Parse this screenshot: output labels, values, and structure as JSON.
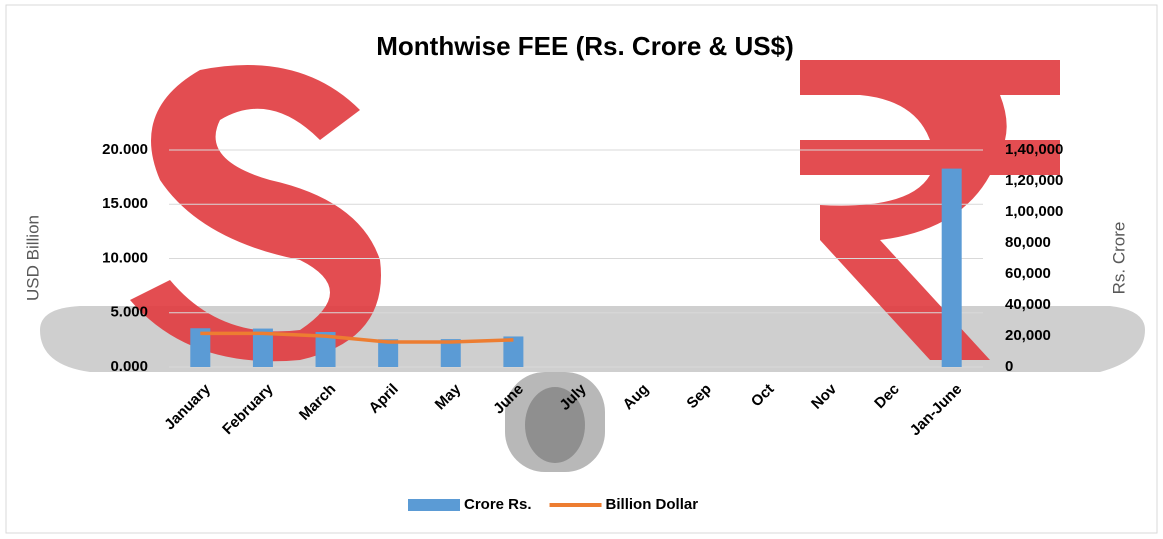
{
  "chart_data": {
    "type": "bar-line",
    "title": "Monthwise FEE (Rs. Crore & US$)",
    "categories": [
      "January",
      "February",
      "March",
      "April",
      "May",
      "June",
      "July",
      "Aug",
      "Sep",
      "Oct",
      "Nov",
      "Dec",
      "Jan-June"
    ],
    "series": [
      {
        "name": "Crore Rs.",
        "type": "bar",
        "axis": "y2",
        "color": "#5b9bd5",
        "values": [
          25000,
          24800,
          22600,
          17900,
          18000,
          19700,
          null,
          null,
          null,
          null,
          null,
          null,
          128000
        ]
      },
      {
        "name": "Billion Dollar",
        "type": "line",
        "axis": "y",
        "color": "#ed7d31",
        "values": [
          3.1,
          3.1,
          2.85,
          2.3,
          2.3,
          2.5,
          null,
          null,
          null,
          null,
          null,
          null,
          null
        ]
      }
    ],
    "y_label": "USD Billion",
    "y2_label": "Rs. Crore",
    "ylim": [
      0,
      20
    ],
    "yticks": [
      {
        "value": 0,
        "label": "0.000"
      },
      {
        "value": 5,
        "label": "5.000"
      },
      {
        "value": 10,
        "label": "10.000"
      },
      {
        "value": 15,
        "label": "15.000"
      },
      {
        "value": 20,
        "label": "20.000"
      }
    ],
    "y2lim": [
      0,
      140000
    ],
    "y2ticks": [
      0,
      {
        "value": 20000,
        "label": "20,000"
      },
      {
        "value": 40000,
        "label": "40,000"
      },
      {
        "value": 60000,
        "label": "60,000"
      },
      {
        "value": 80000,
        "label": "80,000"
      },
      {
        "value": 100000,
        "label": "1,00,000"
      },
      {
        "value": 120000,
        "label": "1,20,000"
      },
      {
        "value": 140000,
        "label": "1,40,000"
      }
    ],
    "grid": true,
    "legend": "bottom"
  }
}
